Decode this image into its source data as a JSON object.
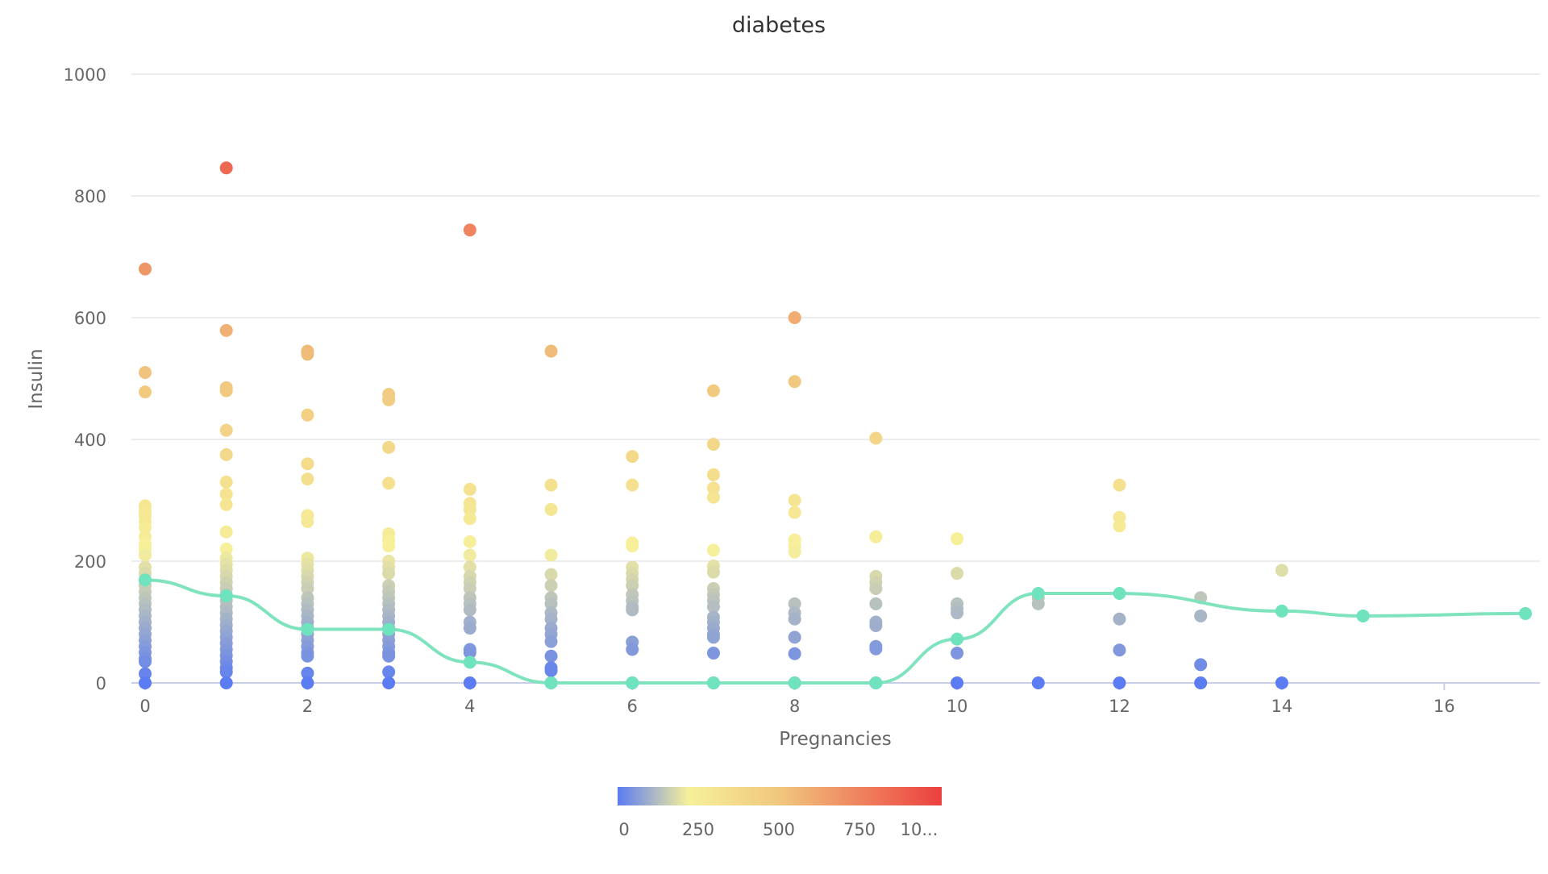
{
  "chart_data": {
    "type": "scatter",
    "title": "diabetes",
    "xlabel": "Pregnancies",
    "ylabel": "Insulin",
    "xlim": [
      0,
      17
    ],
    "ylim": [
      0,
      1000
    ],
    "x_ticks": [
      0,
      2,
      4,
      6,
      8,
      10,
      12,
      14,
      16
    ],
    "y_ticks": [
      0,
      200,
      400,
      600,
      800,
      1000
    ],
    "grid": true,
    "colors": {
      "scale": [
        "#5b7cf2",
        "#f7f09a",
        "#f0c77e",
        "#ef7a5a",
        "#ec4040"
      ],
      "line": "#7fe3bd",
      "line_point": "#6fe3bd",
      "grid": "#e6e6e6",
      "axis": "#c9cfe6",
      "text": "#666666",
      "title": "#333333"
    },
    "visualmap": {
      "min": 0,
      "max": 1000,
      "labels": [
        "0",
        "250",
        "500",
        "750",
        "10..."
      ]
    },
    "series": [
      {
        "type": "scatter",
        "points": [
          [
            0,
            680
          ],
          [
            0,
            510
          ],
          [
            0,
            478
          ],
          [
            0,
            291
          ],
          [
            0,
            282
          ],
          [
            0,
            275
          ],
          [
            0,
            265
          ],
          [
            0,
            255
          ],
          [
            0,
            240
          ],
          [
            0,
            228
          ],
          [
            0,
            220
          ],
          [
            0,
            210
          ],
          [
            0,
            190
          ],
          [
            0,
            180
          ],
          [
            0,
            170
          ],
          [
            0,
            160
          ],
          [
            0,
            150
          ],
          [
            0,
            140
          ],
          [
            0,
            130
          ],
          [
            0,
            120
          ],
          [
            0,
            110
          ],
          [
            0,
            100
          ],
          [
            0,
            90
          ],
          [
            0,
            80
          ],
          [
            0,
            70
          ],
          [
            0,
            60
          ],
          [
            0,
            50
          ],
          [
            0,
            40
          ],
          [
            0,
            35
          ],
          [
            0,
            15
          ],
          [
            0,
            0
          ],
          [
            1,
            846
          ],
          [
            1,
            579
          ],
          [
            1,
            485
          ],
          [
            1,
            480
          ],
          [
            1,
            415
          ],
          [
            1,
            375
          ],
          [
            1,
            330
          ],
          [
            1,
            310
          ],
          [
            1,
            293
          ],
          [
            1,
            248
          ],
          [
            1,
            220
          ],
          [
            1,
            205
          ],
          [
            1,
            195
          ],
          [
            1,
            185
          ],
          [
            1,
            175
          ],
          [
            1,
            165
          ],
          [
            1,
            155
          ],
          [
            1,
            145
          ],
          [
            1,
            135
          ],
          [
            1,
            125
          ],
          [
            1,
            115
          ],
          [
            1,
            105
          ],
          [
            1,
            95
          ],
          [
            1,
            85
          ],
          [
            1,
            75
          ],
          [
            1,
            65
          ],
          [
            1,
            55
          ],
          [
            1,
            45
          ],
          [
            1,
            35
          ],
          [
            1,
            25
          ],
          [
            1,
            18
          ],
          [
            1,
            0
          ],
          [
            2,
            545
          ],
          [
            2,
            540
          ],
          [
            2,
            440
          ],
          [
            2,
            360
          ],
          [
            2,
            335
          ],
          [
            2,
            275
          ],
          [
            2,
            265
          ],
          [
            2,
            205
          ],
          [
            2,
            195
          ],
          [
            2,
            185
          ],
          [
            2,
            175
          ],
          [
            2,
            165
          ],
          [
            2,
            155
          ],
          [
            2,
            140
          ],
          [
            2,
            130
          ],
          [
            2,
            120
          ],
          [
            2,
            110
          ],
          [
            2,
            100
          ],
          [
            2,
            90
          ],
          [
            2,
            80
          ],
          [
            2,
            70
          ],
          [
            2,
            60
          ],
          [
            2,
            50
          ],
          [
            2,
            44
          ],
          [
            2,
            16
          ],
          [
            2,
            0
          ],
          [
            3,
            474
          ],
          [
            3,
            465
          ],
          [
            3,
            387
          ],
          [
            3,
            328
          ],
          [
            3,
            245
          ],
          [
            3,
            235
          ],
          [
            3,
            225
          ],
          [
            3,
            200
          ],
          [
            3,
            190
          ],
          [
            3,
            180
          ],
          [
            3,
            160
          ],
          [
            3,
            150
          ],
          [
            3,
            140
          ],
          [
            3,
            130
          ],
          [
            3,
            120
          ],
          [
            3,
            110
          ],
          [
            3,
            100
          ],
          [
            3,
            90
          ],
          [
            3,
            80
          ],
          [
            3,
            70
          ],
          [
            3,
            60
          ],
          [
            3,
            50
          ],
          [
            3,
            44
          ],
          [
            3,
            18
          ],
          [
            3,
            0
          ],
          [
            4,
            744
          ],
          [
            4,
            318
          ],
          [
            4,
            295
          ],
          [
            4,
            285
          ],
          [
            4,
            270
          ],
          [
            4,
            232
          ],
          [
            4,
            210
          ],
          [
            4,
            190
          ],
          [
            4,
            175
          ],
          [
            4,
            165
          ],
          [
            4,
            155
          ],
          [
            4,
            140
          ],
          [
            4,
            130
          ],
          [
            4,
            120
          ],
          [
            4,
            100
          ],
          [
            4,
            90
          ],
          [
            4,
            55
          ],
          [
            4,
            50
          ],
          [
            4,
            0
          ],
          [
            5,
            545
          ],
          [
            5,
            325
          ],
          [
            5,
            285
          ],
          [
            5,
            210
          ],
          [
            5,
            178
          ],
          [
            5,
            160
          ],
          [
            5,
            140
          ],
          [
            5,
            130
          ],
          [
            5,
            115
          ],
          [
            5,
            105
          ],
          [
            5,
            90
          ],
          [
            5,
            80
          ],
          [
            5,
            68
          ],
          [
            5,
            44
          ],
          [
            5,
            25
          ],
          [
            5,
            20
          ],
          [
            5,
            0
          ],
          [
            6,
            372
          ],
          [
            6,
            325
          ],
          [
            6,
            230
          ],
          [
            6,
            225
          ],
          [
            6,
            190
          ],
          [
            6,
            180
          ],
          [
            6,
            170
          ],
          [
            6,
            160
          ],
          [
            6,
            145
          ],
          [
            6,
            135
          ],
          [
            6,
            125
          ],
          [
            6,
            120
          ],
          [
            6,
            67
          ],
          [
            6,
            55
          ],
          [
            6,
            0
          ],
          [
            7,
            480
          ],
          [
            7,
            392
          ],
          [
            7,
            342
          ],
          [
            7,
            320
          ],
          [
            7,
            305
          ],
          [
            7,
            218
          ],
          [
            7,
            192
          ],
          [
            7,
            182
          ],
          [
            7,
            155
          ],
          [
            7,
            145
          ],
          [
            7,
            135
          ],
          [
            7,
            125
          ],
          [
            7,
            108
          ],
          [
            7,
            100
          ],
          [
            7,
            90
          ],
          [
            7,
            80
          ],
          [
            7,
            75
          ],
          [
            7,
            49
          ],
          [
            7,
            0
          ],
          [
            8,
            600
          ],
          [
            8,
            495
          ],
          [
            8,
            300
          ],
          [
            8,
            280
          ],
          [
            8,
            235
          ],
          [
            8,
            225
          ],
          [
            8,
            215
          ],
          [
            8,
            130
          ],
          [
            8,
            115
          ],
          [
            8,
            105
          ],
          [
            8,
            75
          ],
          [
            8,
            48
          ],
          [
            8,
            0
          ],
          [
            9,
            402
          ],
          [
            9,
            240
          ],
          [
            9,
            175
          ],
          [
            9,
            165
          ],
          [
            9,
            155
          ],
          [
            9,
            130
          ],
          [
            9,
            100
          ],
          [
            9,
            94
          ],
          [
            9,
            60
          ],
          [
            9,
            56
          ],
          [
            9,
            0
          ],
          [
            10,
            237
          ],
          [
            10,
            180
          ],
          [
            10,
            130
          ],
          [
            10,
            122
          ],
          [
            10,
            115
          ],
          [
            10,
            49
          ],
          [
            10,
            0
          ],
          [
            11,
            140
          ],
          [
            11,
            130
          ],
          [
            11,
            0
          ],
          [
            12,
            325
          ],
          [
            12,
            272
          ],
          [
            12,
            258
          ],
          [
            12,
            105
          ],
          [
            12,
            54
          ],
          [
            12,
            0
          ],
          [
            13,
            140
          ],
          [
            13,
            110
          ],
          [
            13,
            30
          ],
          [
            13,
            0
          ],
          [
            14,
            185
          ],
          [
            14,
            0
          ]
        ]
      },
      {
        "type": "line",
        "smooth": true,
        "points": [
          [
            0,
            169
          ],
          [
            1,
            143
          ],
          [
            2,
            88
          ],
          [
            3,
            88
          ],
          [
            4,
            34
          ],
          [
            5,
            0
          ],
          [
            6,
            0
          ],
          [
            7,
            0
          ],
          [
            8,
            0
          ],
          [
            9,
            0
          ],
          [
            10,
            72
          ],
          [
            11,
            147
          ],
          [
            12,
            147
          ],
          [
            14,
            118
          ],
          [
            15,
            110
          ],
          [
            17,
            114
          ]
        ]
      }
    ]
  }
}
